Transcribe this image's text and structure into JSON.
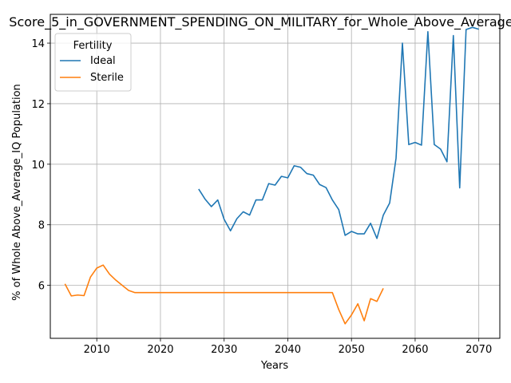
{
  "chart_data": {
    "type": "line",
    "title": "Score_5_in_GOVERNMENT_SPENDING_ON_MILITARY_for_Whole_Above_Average",
    "xlabel": "Years",
    "ylabel": "% of Whole Above_Average_IQ Population",
    "xlim": [
      2002.7,
      2073.3
    ],
    "ylim": [
      4.25,
      14.95
    ],
    "xticks": [
      2010,
      2020,
      2030,
      2040,
      2050,
      2060,
      2070
    ],
    "yticks": [
      6,
      8,
      10,
      12,
      14
    ],
    "grid": true,
    "legend": {
      "title": "Fertility",
      "placement": "top-left"
    },
    "series": [
      {
        "name": "Ideal",
        "color": "#1f77b4",
        "x": [
          2026,
          2027,
          2028,
          2029,
          2030,
          2031,
          2032,
          2033,
          2034,
          2035,
          2036,
          2037,
          2038,
          2039,
          2040,
          2041,
          2042,
          2043,
          2044,
          2045,
          2046,
          2047,
          2048,
          2049,
          2050,
          2051,
          2052,
          2053,
          2054,
          2055,
          2056,
          2057,
          2058,
          2059,
          2060,
          2061,
          2062,
          2063,
          2064,
          2065,
          2066,
          2067,
          2068,
          2069,
          2070
        ],
        "values": [
          9.18,
          8.85,
          8.6,
          8.82,
          8.18,
          7.8,
          8.2,
          8.43,
          8.32,
          8.82,
          8.82,
          9.36,
          9.31,
          9.6,
          9.55,
          9.95,
          9.9,
          9.69,
          9.64,
          9.33,
          9.23,
          8.82,
          8.5,
          7.65,
          7.78,
          7.7,
          7.7,
          8.05,
          7.55,
          8.32,
          8.72,
          10.2,
          14.0,
          10.65,
          10.72,
          10.63,
          14.38,
          10.65,
          10.5,
          10.08,
          14.25,
          9.22,
          14.45,
          14.52,
          14.46
        ]
      },
      {
        "name": "Sterile",
        "color": "#ff7f0e",
        "x": [
          2005,
          2006,
          2007,
          2008,
          2009,
          2010,
          2011,
          2012,
          2013,
          2014,
          2015,
          2016,
          2017,
          2018,
          2019,
          2020,
          2021,
          2022,
          2023,
          2024,
          2025,
          2026,
          2027,
          2028,
          2029,
          2030,
          2031,
          2032,
          2033,
          2034,
          2035,
          2036,
          2037,
          2038,
          2039,
          2040,
          2041,
          2042,
          2043,
          2044,
          2045,
          2046,
          2047,
          2048,
          2049,
          2050,
          2051,
          2052,
          2053,
          2054,
          2055
        ],
        "values": [
          6.05,
          5.65,
          5.68,
          5.66,
          6.27,
          6.57,
          6.67,
          6.37,
          6.17,
          6.0,
          5.83,
          5.76,
          5.76,
          5.76,
          5.76,
          5.76,
          5.76,
          5.76,
          5.76,
          5.76,
          5.76,
          5.76,
          5.76,
          5.76,
          5.76,
          5.76,
          5.76,
          5.76,
          5.76,
          5.76,
          5.76,
          5.76,
          5.76,
          5.76,
          5.76,
          5.76,
          5.76,
          5.76,
          5.76,
          5.76,
          5.76,
          5.76,
          5.76,
          5.2,
          4.73,
          5.02,
          5.39,
          4.83,
          5.56,
          5.47,
          5.9
        ]
      }
    ]
  }
}
